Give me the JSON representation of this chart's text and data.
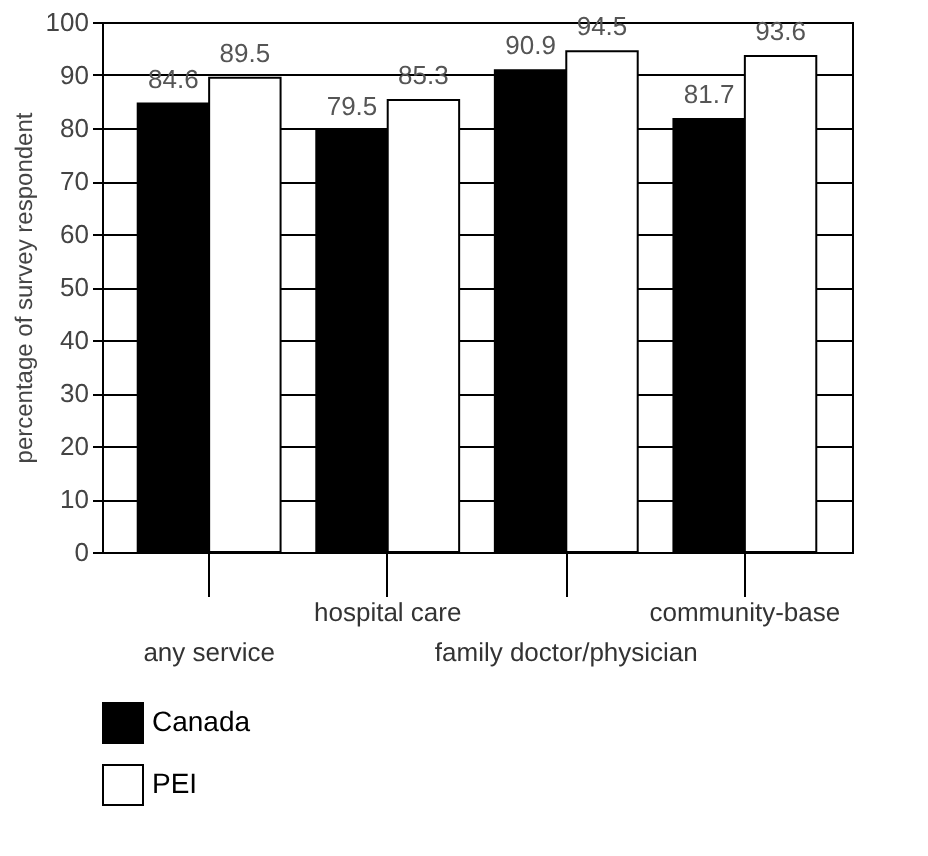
{
  "chart_data": {
    "type": "bar",
    "ylabel": "percentage of survey respondent",
    "categories": [
      "any service",
      "hospital care",
      "family doctor/physician",
      "community-base"
    ],
    "series": [
      {
        "name": "Canada",
        "color": "#000000",
        "values": [
          84.6,
          79.5,
          90.9,
          81.7
        ]
      },
      {
        "name": "PEI",
        "color": "#ffffff",
        "values": [
          89.5,
          85.3,
          94.5,
          93.6
        ]
      }
    ],
    "ylim": [
      0,
      100
    ],
    "yticks": [
      0,
      10,
      20,
      30,
      40,
      50,
      60,
      70,
      80,
      90,
      100
    ],
    "grid": "y",
    "legend": "bottom",
    "data_labels": true
  }
}
